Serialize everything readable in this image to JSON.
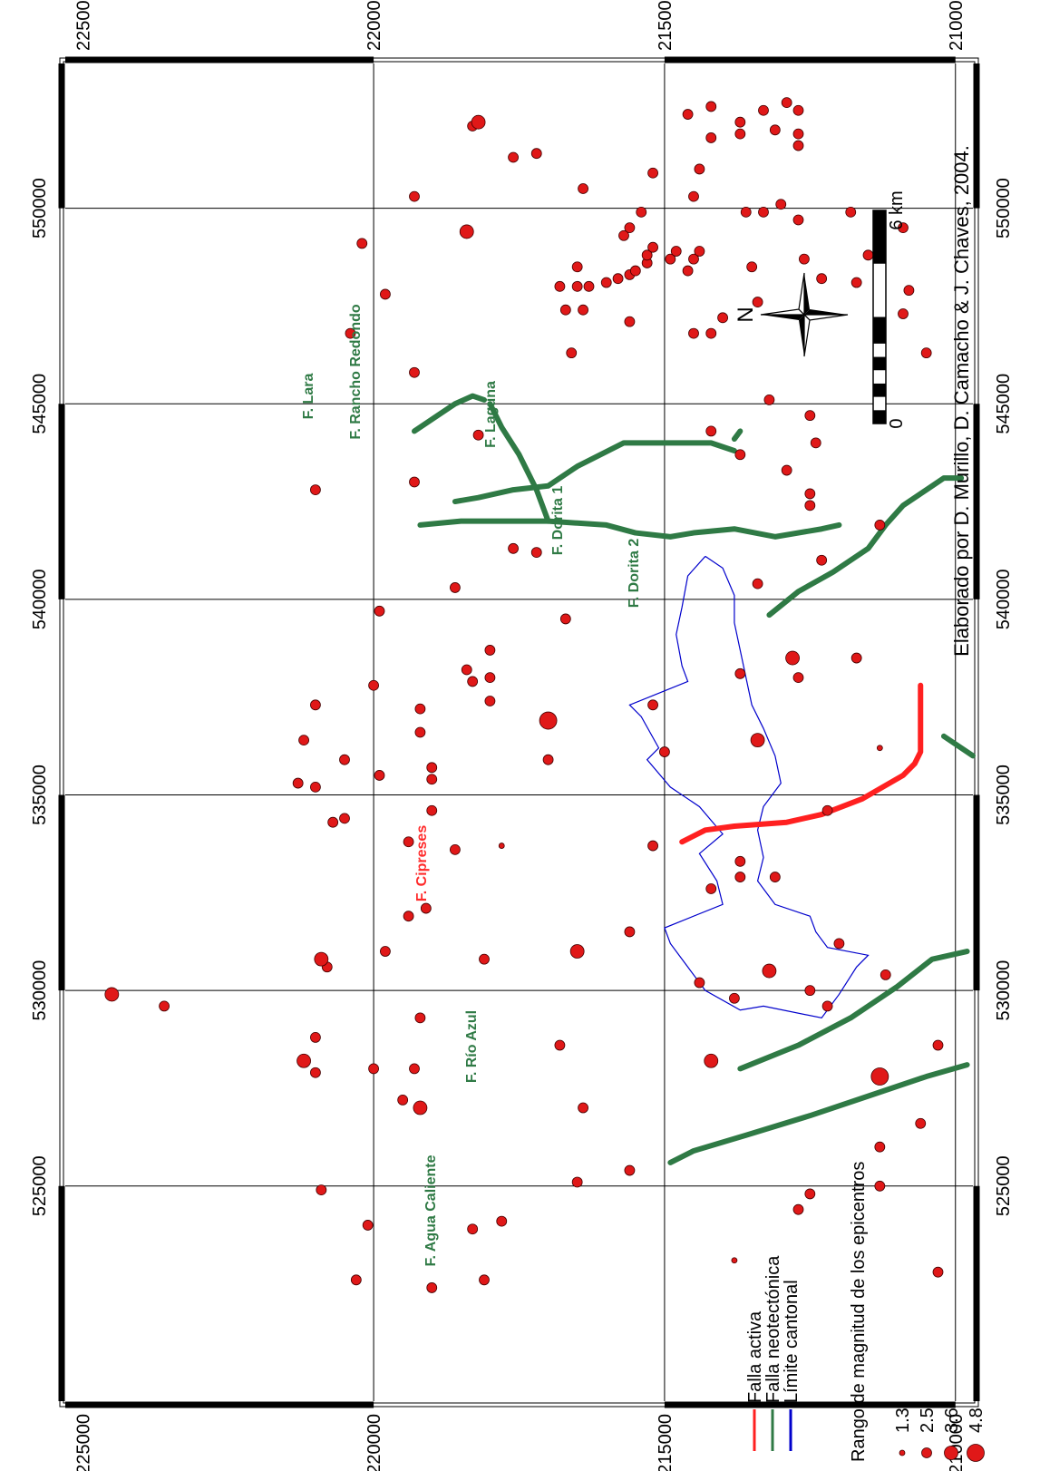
{
  "map": {
    "x_ticks": [
      "520000",
      "525000",
      "530000",
      "535000",
      "540000",
      "545000",
      "550000",
      "555000"
    ],
    "y_ticks": [
      "210000",
      "215000",
      "220000",
      "225000"
    ],
    "x_range": [
      519500,
      553700
    ],
    "y_range": [
      209700,
      225300
    ],
    "grid_x": [
      525000,
      530000,
      535000,
      540000,
      545000,
      550000
    ],
    "grid_y": [
      210000,
      215000,
      220000
    ],
    "tick_x_shown": [
      525000,
      530000,
      535000,
      540000,
      545000,
      550000
    ],
    "tick_y_shown": [
      210000,
      215000,
      220000,
      225000
    ]
  },
  "faults": [
    {
      "name": "F. Cipreses",
      "kind": "activa",
      "color": "#ff2020",
      "points": [
        [
          533800,
          214700
        ],
        [
          534100,
          214300
        ],
        [
          534200,
          213800
        ],
        [
          534300,
          212900
        ],
        [
          534500,
          212300
        ],
        [
          534900,
          211600
        ],
        [
          535500,
          210900
        ],
        [
          535800,
          210700
        ],
        [
          536100,
          210600
        ],
        [
          537000,
          210600
        ],
        [
          537800,
          210600
        ]
      ]
    },
    {
      "name": "F. Dorita 2 (east)",
      "kind": "neotectonica",
      "color": "#2f7a45",
      "points": [
        [
          536500,
          210200
        ],
        [
          536000,
          209700
        ]
      ]
    },
    {
      "name": "F. Lara",
      "kind": "neotectonica",
      "color": "#2f7a45",
      "points": [
        [
          544300,
          219300
        ],
        [
          544700,
          218900
        ],
        [
          545000,
          218600
        ],
        [
          545200,
          218300
        ],
        [
          545100,
          218100
        ]
      ]
    },
    {
      "name": "F. Rancho Redondo",
      "kind": "neotectonica",
      "color": "#2f7a45",
      "points": [
        [
          545000,
          218000
        ],
        [
          544400,
          217800
        ],
        [
          543700,
          217500
        ],
        [
          542800,
          217200
        ],
        [
          542000,
          217000
        ]
      ]
    },
    {
      "name": "F. Rancho Redondo branch",
      "kind": "neotectonica",
      "color": "#2f7a45",
      "points": [
        [
          542500,
          218600
        ],
        [
          542600,
          218200
        ],
        [
          542800,
          217600
        ],
        [
          542900,
          217000
        ],
        [
          543400,
          216500
        ],
        [
          544000,
          215700
        ],
        [
          544000,
          215000
        ],
        [
          544000,
          214200
        ],
        [
          543800,
          213800
        ]
      ]
    },
    {
      "name": "F. Laguna",
      "kind": "neotectonica",
      "color": "#2f7a45",
      "points": [
        [
          544100,
          213800
        ],
        [
          544300,
          213700
        ]
      ]
    },
    {
      "name": "F. Dorita 1",
      "kind": "neotectonica",
      "color": "#2f7a45",
      "points": [
        [
          541900,
          219200
        ],
        [
          542000,
          218500
        ],
        [
          542000,
          218000
        ],
        [
          542000,
          217000
        ],
        [
          541900,
          216000
        ],
        [
          541700,
          215500
        ],
        [
          541600,
          214900
        ],
        [
          541700,
          214500
        ],
        [
          541800,
          213800
        ],
        [
          541600,
          213100
        ],
        [
          541800,
          212300
        ],
        [
          541900,
          212000
        ]
      ]
    },
    {
      "name": "F. Dorita 2",
      "kind": "neotectonica",
      "color": "#2f7a45",
      "points": [
        [
          539600,
          213200
        ],
        [
          540200,
          212700
        ],
        [
          540700,
          212100
        ],
        [
          541300,
          211500
        ],
        [
          541900,
          211200
        ],
        [
          542400,
          210900
        ],
        [
          542800,
          210500
        ],
        [
          543100,
          210200
        ],
        [
          543100,
          209900
        ]
      ]
    },
    {
      "name": "F. Rio Azul",
      "kind": "neotectonica",
      "color": "#2f7a45",
      "points": [
        [
          528000,
          213700
        ],
        [
          528600,
          212700
        ],
        [
          529300,
          211800
        ],
        [
          530100,
          211000
        ],
        [
          530800,
          210400
        ],
        [
          531000,
          209800
        ]
      ]
    },
    {
      "name": "F. Agua Caliente",
      "kind": "neotectonica",
      "color": "#2f7a45",
      "points": [
        [
          525600,
          214900
        ],
        [
          525900,
          214500
        ],
        [
          526300,
          213600
        ],
        [
          526800,
          212500
        ],
        [
          527300,
          211500
        ],
        [
          527800,
          210500
        ],
        [
          528100,
          209800
        ]
      ]
    }
  ],
  "canton": {
    "color": "#0000cc",
    "points": [
      [
        541100,
        214300
      ],
      [
        540600,
        214600
      ],
      [
        539800,
        214700
      ],
      [
        539100,
        214800
      ],
      [
        538300,
        214700
      ],
      [
        537900,
        214600
      ],
      [
        537300,
        215600
      ],
      [
        537000,
        215400
      ],
      [
        536200,
        215100
      ],
      [
        535900,
        215300
      ],
      [
        535200,
        214900
      ],
      [
        534700,
        214400
      ],
      [
        534000,
        214000
      ],
      [
        533500,
        214400
      ],
      [
        532800,
        214100
      ],
      [
        532200,
        214000
      ],
      [
        531600,
        215000
      ],
      [
        531200,
        214900
      ],
      [
        530600,
        214600
      ],
      [
        530000,
        214300
      ],
      [
        529500,
        213700
      ],
      [
        529600,
        213300
      ],
      [
        529300,
        212300
      ],
      [
        529900,
        212000
      ],
      [
        530600,
        211700
      ],
      [
        530900,
        211500
      ],
      [
        531100,
        212200
      ],
      [
        531500,
        212400
      ],
      [
        531900,
        212500
      ],
      [
        532200,
        213100
      ],
      [
        532800,
        213400
      ],
      [
        533400,
        213300
      ],
      [
        534100,
        213400
      ],
      [
        534700,
        213300
      ],
      [
        535300,
        213000
      ],
      [
        536000,
        213100
      ],
      [
        536700,
        213300
      ],
      [
        537300,
        213500
      ],
      [
        538000,
        213600
      ],
      [
        538700,
        213700
      ],
      [
        539400,
        213800
      ],
      [
        540100,
        213800
      ],
      [
        540800,
        214000
      ],
      [
        541100,
        214300
      ]
    ]
  },
  "epicenters": [
    [
      522600,
      220300,
      2
    ],
    [
      522400,
      219000,
      2
    ],
    [
      522600,
      218100,
      2
    ],
    [
      523900,
      218300,
      2
    ],
    [
      524100,
      217800,
      2
    ],
    [
      523100,
      213800,
      1
    ],
    [
      522800,
      210300,
      2
    ],
    [
      524000,
      220100,
      2
    ],
    [
      524900,
      220900,
      2
    ],
    [
      525100,
      216500,
      2
    ],
    [
      525400,
      215600,
      2
    ],
    [
      524800,
      212500,
      2
    ],
    [
      524400,
      212700,
      2
    ],
    [
      525000,
      211300,
      2
    ],
    [
      526000,
      211300,
      2
    ],
    [
      526600,
      210600,
      2
    ],
    [
      527000,
      216400,
      2
    ],
    [
      527000,
      219200,
      3
    ],
    [
      527200,
      219500,
      2
    ],
    [
      527900,
      221000,
      2
    ],
    [
      528000,
      220000,
      2
    ],
    [
      528200,
      221200,
      3
    ],
    [
      528000,
      219300,
      2
    ],
    [
      528800,
      221000,
      2
    ],
    [
      528600,
      216800,
      2
    ],
    [
      528200,
      214200,
      3
    ],
    [
      527800,
      211300,
      4
    ],
    [
      528600,
      210300,
      2
    ],
    [
      529300,
      219200,
      2
    ],
    [
      529600,
      223600,
      2
    ],
    [
      529900,
      224500,
      3
    ],
    [
      529800,
      213800,
      2
    ],
    [
      529600,
      212200,
      2
    ],
    [
      530200,
      214400,
      2
    ],
    [
      530000,
      212500,
      2
    ],
    [
      530400,
      211200,
      2
    ],
    [
      530600,
      220800,
      2
    ],
    [
      530800,
      220900,
      3
    ],
    [
      531000,
      219800,
      2
    ],
    [
      530800,
      218100,
      2
    ],
    [
      531000,
      216500,
      3
    ],
    [
      530500,
      213200,
      3
    ],
    [
      531200,
      212000,
      2
    ],
    [
      531500,
      215600,
      2
    ],
    [
      531900,
      219400,
      2
    ],
    [
      532100,
      219100,
      2
    ],
    [
      532600,
      214200,
      2
    ],
    [
      532900,
      213700,
      2
    ],
    [
      532900,
      213100,
      2
    ],
    [
      533300,
      213700,
      2
    ],
    [
      533600,
      218600,
      2
    ],
    [
      533700,
      215200,
      2
    ],
    [
      533700,
      217800,
      1
    ],
    [
      533800,
      219400,
      2
    ],
    [
      534300,
      220700,
      2
    ],
    [
      534400,
      220500,
      2
    ],
    [
      534600,
      219000,
      2
    ],
    [
      534600,
      212200,
      2
    ],
    [
      535200,
      221000,
      2
    ],
    [
      535300,
      221300,
      2
    ],
    [
      535500,
      219900,
      2
    ],
    [
      535400,
      219000,
      2
    ],
    [
      535700,
      219000,
      2
    ],
    [
      535900,
      217000,
      2
    ],
    [
      535900,
      220500,
      2
    ],
    [
      536100,
      215000,
      2
    ],
    [
      536200,
      211300,
      1
    ],
    [
      536400,
      221200,
      2
    ],
    [
      536400,
      213400,
      3
    ],
    [
      536600,
      219200,
      2
    ],
    [
      536900,
      217000,
      4
    ],
    [
      537200,
      219200,
      2
    ],
    [
      537400,
      218000,
      2
    ],
    [
      537300,
      215200,
      2
    ],
    [
      537300,
      221000,
      2
    ],
    [
      537800,
      220000,
      2
    ],
    [
      537900,
      218300,
      2
    ],
    [
      538000,
      218000,
      2
    ],
    [
      538100,
      213700,
      2
    ],
    [
      538200,
      218400,
      2
    ],
    [
      538000,
      212700,
      2
    ],
    [
      538500,
      212800,
      3
    ],
    [
      538500,
      211700,
      2
    ],
    [
      538700,
      218000,
      2
    ],
    [
      539500,
      216700,
      2
    ],
    [
      539700,
      219900,
      2
    ],
    [
      540300,
      218600,
      2
    ],
    [
      540400,
      213400,
      2
    ],
    [
      541000,
      212300,
      2
    ],
    [
      541200,
      217200,
      2
    ],
    [
      541300,
      217600,
      2
    ],
    [
      541900,
      211300,
      2
    ],
    [
      542400,
      212500,
      2
    ],
    [
      542700,
      212500,
      2
    ],
    [
      542800,
      221000,
      2
    ],
    [
      543000,
      219300,
      2
    ],
    [
      543300,
      212900,
      2
    ],
    [
      543700,
      213700,
      2
    ],
    [
      544000,
      212400,
      2
    ],
    [
      544200,
      218200,
      2
    ],
    [
      544300,
      214200,
      2
    ],
    [
      544700,
      212500,
      2
    ],
    [
      545100,
      213200,
      2
    ],
    [
      545800,
      219300,
      2
    ],
    [
      546300,
      216600,
      2
    ],
    [
      546300,
      210500,
      2
    ],
    [
      546800,
      220400,
      2
    ],
    [
      546800,
      214500,
      2
    ],
    [
      546800,
      214200,
      2
    ],
    [
      547200,
      214000,
      2
    ],
    [
      547100,
      215600,
      2
    ],
    [
      547300,
      210900,
      2
    ],
    [
      547400,
      216400,
      2
    ],
    [
      547400,
      216700,
      2
    ],
    [
      547600,
      213400,
      2
    ],
    [
      547800,
      219800,
      2
    ],
    [
      547900,
      210800,
      2
    ],
    [
      548000,
      216500,
      2
    ],
    [
      548000,
      216800,
      2
    ],
    [
      548000,
      216300,
      2
    ],
    [
      548100,
      216000,
      2
    ],
    [
      548200,
      212300,
      2
    ],
    [
      548100,
      211700,
      2
    ],
    [
      548200,
      215800,
      2
    ],
    [
      548300,
      215600,
      2
    ],
    [
      548400,
      215500,
      2
    ],
    [
      548400,
      214600,
      2
    ],
    [
      548500,
      213500,
      2
    ],
    [
      548500,
      216500,
      2
    ],
    [
      548600,
      215300,
      2
    ],
    [
      548700,
      214900,
      2
    ],
    [
      548700,
      214500,
      2
    ],
    [
      548700,
      212600,
      2
    ],
    [
      548800,
      211500,
      2
    ],
    [
      548800,
      215300,
      2
    ],
    [
      548900,
      214800,
      2
    ],
    [
      548900,
      214400,
      2
    ],
    [
      549000,
      215200,
      2
    ],
    [
      549100,
      220200,
      2
    ],
    [
      549300,
      215700,
      2
    ],
    [
      549500,
      215600,
      2
    ],
    [
      549400,
      218400,
      3
    ],
    [
      549500,
      210900,
      2
    ],
    [
      549700,
      212700,
      2
    ],
    [
      549900,
      213600,
      2
    ],
    [
      549900,
      213300,
      2
    ],
    [
      549900,
      211800,
      2
    ],
    [
      549900,
      215400,
      2
    ],
    [
      550100,
      213000,
      2
    ],
    [
      550300,
      214500,
      2
    ],
    [
      550300,
      219300,
      2
    ],
    [
      550500,
      216400,
      2
    ],
    [
      550900,
      215200,
      2
    ],
    [
      551000,
      214400,
      2
    ],
    [
      551400,
      217200,
      2
    ],
    [
      551300,
      217600,
      2
    ],
    [
      551600,
      212700,
      2
    ],
    [
      551900,
      213700,
      2
    ],
    [
      551900,
      212700,
      2
    ],
    [
      552000,
      213100,
      2
    ],
    [
      551800,
      214200,
      2
    ],
    [
      552100,
      218300,
      2
    ],
    [
      552200,
      218200,
      3
    ],
    [
      552200,
      213700,
      2
    ],
    [
      552400,
      214600,
      2
    ],
    [
      552500,
      213300,
      2
    ],
    [
      552500,
      212700,
      2
    ],
    [
      552600,
      214200,
      2
    ],
    [
      552700,
      212900,
      2
    ]
  ],
  "labels": {
    "cipreses": "F. Cipreses",
    "rio_azul": "F. Río Azul",
    "agua_caliente": "F. Agua Caliente",
    "lara": "F. Lara",
    "rancho_redondo": "F. Rancho Redondo",
    "laguna": "F. Laguna",
    "dorita1": "F. Dorita 1",
    "dorita2": "F. Dorita 2"
  },
  "north_label": "N",
  "scale": {
    "left": "0",
    "right": "6 km"
  },
  "credit": "Elaborado por D. Murillo, D. Camacho & J. Chaves, 2004.",
  "legend": {
    "items": [
      {
        "label": "Falla activa",
        "color": "#ff2020"
      },
      {
        "label": "Falla neotectónica",
        "color": "#2f7a45"
      },
      {
        "label": "Límite cantonal",
        "color": "#0000cc"
      }
    ],
    "magnitude_title": "Rango de magnitud de los epicentros",
    "magnitudes": [
      {
        "label": "1.3",
        "size": 1
      },
      {
        "label": "2.5",
        "size": 2
      },
      {
        "label": "3.6",
        "size": 3
      },
      {
        "label": "4.8",
        "size": 4
      }
    ],
    "dot_color": "#e01818"
  }
}
